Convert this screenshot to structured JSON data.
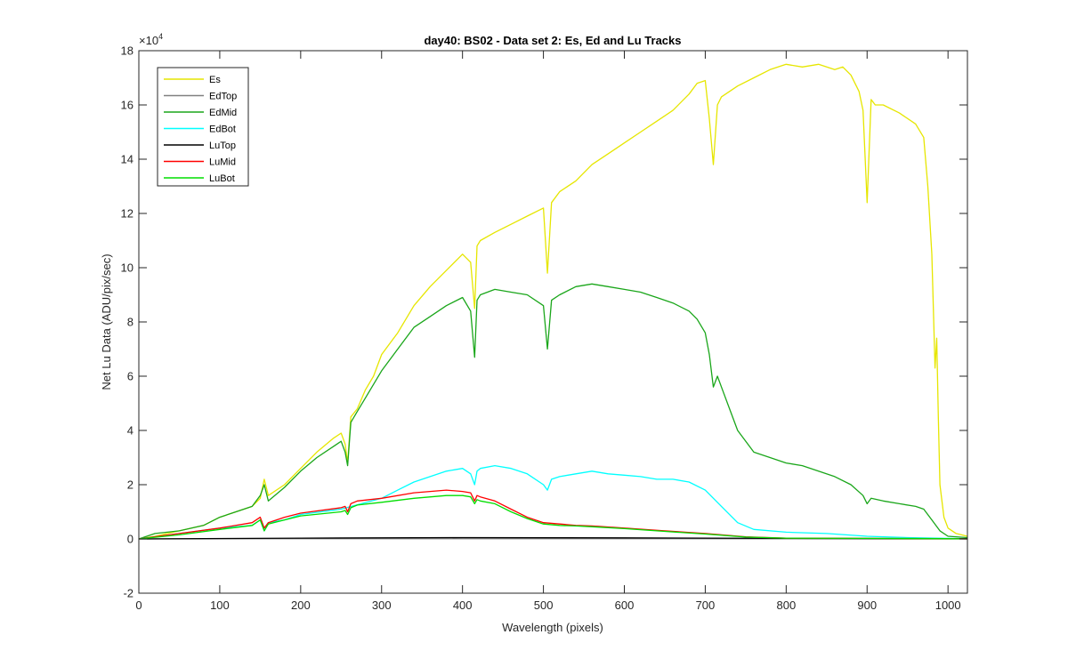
{
  "chart_data": {
    "type": "line",
    "title": "day40: BS02 - Data set 2: Es, Ed and Lu Tracks",
    "xlabel": "Wavelength (pixels)",
    "ylabel": "Net Lu Data (ADU/pix/sec)",
    "y_exponent_label": {
      "base": "×10",
      "power": "4"
    },
    "xlim": [
      0,
      1024
    ],
    "ylim": [
      -2,
      18
    ],
    "y_scale_factor": 10000,
    "xticks": [
      0,
      100,
      200,
      300,
      400,
      500,
      600,
      700,
      800,
      900,
      1000
    ],
    "xtick_labels": [
      "0",
      "100",
      "200",
      "300",
      "400",
      "500",
      "600",
      "700",
      "800",
      "900",
      "1000"
    ],
    "yticks": [
      -2,
      0,
      2,
      4,
      6,
      8,
      10,
      12,
      14,
      16,
      18
    ],
    "ytick_labels": [
      "-2",
      "0",
      "2",
      "4",
      "6",
      "8",
      "10",
      "12",
      "14",
      "16",
      "18"
    ],
    "grid": false,
    "legend_position": "top-left",
    "series": [
      {
        "name": "Es",
        "color": "#e6e600",
        "x": [
          0,
          20,
          50,
          80,
          100,
          120,
          140,
          150,
          155,
          160,
          180,
          200,
          220,
          240,
          250,
          255,
          258,
          262,
          270,
          280,
          290,
          300,
          320,
          340,
          360,
          380,
          400,
          410,
          415,
          418,
          422,
          440,
          460,
          480,
          500,
          505,
          510,
          520,
          540,
          560,
          580,
          600,
          620,
          640,
          660,
          680,
          690,
          700,
          705,
          710,
          715,
          720,
          740,
          760,
          780,
          800,
          820,
          840,
          860,
          870,
          880,
          890,
          895,
          900,
          905,
          910,
          920,
          940,
          960,
          970,
          975,
          980,
          984,
          986,
          988,
          990,
          995,
          1000,
          1010,
          1024
        ],
        "y": [
          0,
          0.1,
          0.3,
          0.5,
          0.8,
          1.0,
          1.2,
          1.5,
          2.2,
          1.6,
          2.0,
          2.6,
          3.2,
          3.7,
          3.9,
          3.5,
          2.8,
          4.5,
          4.8,
          5.5,
          6.0,
          6.8,
          7.6,
          8.6,
          9.3,
          9.9,
          10.5,
          10.2,
          8.5,
          10.8,
          11.0,
          11.3,
          11.6,
          11.9,
          12.2,
          9.8,
          12.4,
          12.8,
          13.2,
          13.8,
          14.2,
          14.6,
          15.0,
          15.4,
          15.8,
          16.4,
          16.8,
          16.9,
          15.5,
          13.8,
          16.0,
          16.3,
          16.7,
          17.0,
          17.3,
          17.5,
          17.4,
          17.5,
          17.3,
          17.4,
          17.1,
          16.5,
          15.8,
          12.4,
          16.2,
          16.0,
          16.0,
          15.7,
          15.3,
          14.8,
          13.0,
          10.5,
          6.3,
          7.4,
          4.5,
          2.0,
          0.8,
          0.4,
          0.2,
          0.1
        ]
      },
      {
        "name": "EdTop",
        "color": "#808080",
        "x": [
          0,
          200,
          400,
          600,
          800,
          1024
        ],
        "y": [
          0,
          0.01,
          0.01,
          0.01,
          0.005,
          0
        ]
      },
      {
        "name": "EdMid",
        "color": "#1aa61a",
        "x": [
          0,
          20,
          50,
          80,
          100,
          120,
          140,
          150,
          155,
          160,
          180,
          200,
          220,
          240,
          250,
          255,
          258,
          262,
          270,
          280,
          300,
          320,
          340,
          360,
          380,
          400,
          410,
          415,
          418,
          422,
          440,
          460,
          480,
          500,
          505,
          510,
          520,
          540,
          560,
          580,
          600,
          620,
          640,
          660,
          680,
          690,
          700,
          705,
          710,
          715,
          720,
          730,
          740,
          760,
          780,
          800,
          820,
          840,
          860,
          880,
          895,
          900,
          905,
          920,
          940,
          960,
          970,
          980,
          990,
          1000,
          1024
        ],
        "y": [
          0,
          0.2,
          0.3,
          0.5,
          0.8,
          1.0,
          1.2,
          1.6,
          2.0,
          1.4,
          1.9,
          2.5,
          3.0,
          3.4,
          3.6,
          3.2,
          2.7,
          4.3,
          4.7,
          5.2,
          6.2,
          7.0,
          7.8,
          8.2,
          8.6,
          8.9,
          8.4,
          6.7,
          8.8,
          9.0,
          9.2,
          9.1,
          9.0,
          8.6,
          7.0,
          8.8,
          9.0,
          9.3,
          9.4,
          9.3,
          9.2,
          9.1,
          8.9,
          8.7,
          8.4,
          8.1,
          7.6,
          6.8,
          5.6,
          6.0,
          5.6,
          4.8,
          4.0,
          3.2,
          3.0,
          2.8,
          2.7,
          2.5,
          2.3,
          2.0,
          1.6,
          1.3,
          1.5,
          1.4,
          1.3,
          1.2,
          1.1,
          0.7,
          0.3,
          0.1,
          0.05
        ]
      },
      {
        "name": "EdBot",
        "color": "#00ffff",
        "x": [
          0,
          50,
          100,
          140,
          150,
          155,
          160,
          180,
          200,
          250,
          300,
          320,
          340,
          360,
          380,
          400,
          410,
          415,
          418,
          422,
          440,
          460,
          480,
          500,
          505,
          510,
          520,
          540,
          560,
          580,
          600,
          620,
          640,
          660,
          680,
          700,
          720,
          740,
          760,
          800,
          850,
          900,
          950,
          1000,
          1024
        ],
        "y": [
          0,
          0.2,
          0.4,
          0.5,
          0.7,
          0.3,
          0.6,
          0.7,
          0.9,
          1.1,
          1.5,
          1.8,
          2.1,
          2.3,
          2.5,
          2.6,
          2.4,
          2.0,
          2.5,
          2.6,
          2.7,
          2.6,
          2.4,
          2.0,
          1.8,
          2.2,
          2.3,
          2.4,
          2.5,
          2.4,
          2.35,
          2.3,
          2.2,
          2.2,
          2.1,
          1.8,
          1.2,
          0.6,
          0.35,
          0.25,
          0.2,
          0.1,
          0.05,
          0.02,
          0.01
        ]
      },
      {
        "name": "LuTop",
        "color": "#000000",
        "x": [
          0,
          200,
          400,
          600,
          800,
          1024
        ],
        "y": [
          0,
          0.03,
          0.05,
          0.04,
          0.02,
          0.01
        ]
      },
      {
        "name": "LuMid",
        "color": "#ff0000",
        "x": [
          0,
          50,
          100,
          140,
          150,
          155,
          160,
          180,
          200,
          250,
          255,
          258,
          262,
          270,
          300,
          340,
          380,
          400,
          410,
          415,
          418,
          422,
          440,
          460,
          480,
          500,
          520,
          540,
          560,
          600,
          650,
          700,
          750,
          800,
          900,
          1000,
          1024
        ],
        "y": [
          0,
          0.2,
          0.4,
          0.6,
          0.8,
          0.4,
          0.6,
          0.8,
          0.95,
          1.15,
          1.2,
          1.0,
          1.3,
          1.4,
          1.5,
          1.7,
          1.8,
          1.75,
          1.7,
          1.4,
          1.6,
          1.55,
          1.4,
          1.1,
          0.8,
          0.6,
          0.55,
          0.5,
          0.48,
          0.4,
          0.3,
          0.2,
          0.08,
          0.03,
          0.02,
          0.01,
          0
        ]
      },
      {
        "name": "LuBot",
        "color": "#00dd00",
        "x": [
          0,
          50,
          100,
          140,
          150,
          155,
          160,
          180,
          200,
          250,
          255,
          258,
          262,
          270,
          300,
          340,
          380,
          400,
          410,
          415,
          418,
          422,
          440,
          460,
          480,
          500,
          520,
          540,
          560,
          600,
          650,
          700,
          750,
          800,
          900,
          1000,
          1024
        ],
        "y": [
          0,
          0.15,
          0.35,
          0.5,
          0.7,
          0.3,
          0.55,
          0.7,
          0.85,
          1.0,
          1.05,
          0.9,
          1.15,
          1.25,
          1.35,
          1.5,
          1.6,
          1.6,
          1.55,
          1.3,
          1.45,
          1.4,
          1.3,
          1.0,
          0.75,
          0.55,
          0.5,
          0.48,
          0.45,
          0.38,
          0.28,
          0.18,
          0.07,
          0.03,
          0.02,
          0.01,
          0
        ]
      }
    ]
  }
}
